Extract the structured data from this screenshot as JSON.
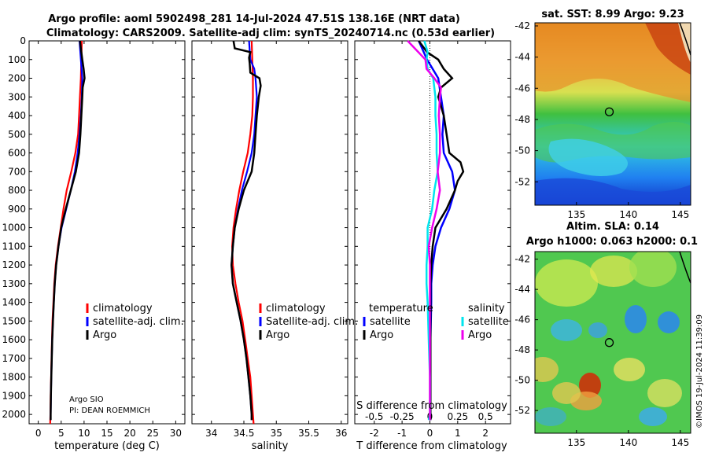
{
  "header": {
    "line1": "Argo profile: aoml 5902498_281 14-Jul-2024 47.51S 138.16E (NRT data)",
    "line2": "Climatology: CARS2009. Satellite-adj clim: synTS_20240714.nc (0.53d earlier)"
  },
  "colors": {
    "climatology": "#ff0000",
    "satellite": "#0000ff",
    "argo": "#000000",
    "sal_satellite": "#00e5ee",
    "sal_argo": "#ee00ee"
  },
  "depth_ticks": [
    0,
    100,
    200,
    300,
    400,
    500,
    600,
    700,
    800,
    900,
    1000,
    1100,
    1200,
    1300,
    1400,
    1500,
    1600,
    1700,
    1800,
    1900,
    2000
  ],
  "chart_data": [
    {
      "id": "temperature",
      "type": "line",
      "xlabel": "temperature (deg C)",
      "ylabel": "",
      "xlim": [
        -2,
        32
      ],
      "ylim": [
        2050,
        0
      ],
      "xticks": [
        0,
        5,
        10,
        15,
        20,
        25,
        30
      ],
      "xticklabels": [
        "0",
        "5",
        "10",
        "15",
        "20",
        "25",
        "30"
      ],
      "legend": {
        "position": "lower-right",
        "entries": [
          "climatology",
          "satellite-adj. clim.",
          "Argo"
        ]
      },
      "annotations": [
        "Argo SIO",
        "PI: DEAN ROEMMICH"
      ],
      "series": [
        {
          "name": "climatology",
          "color": "#ff0000",
          "depth": [
            0,
            100,
            200,
            300,
            400,
            500,
            600,
            700,
            800,
            900,
            1000,
            1100,
            1200,
            1300,
            1400,
            1500,
            1600,
            1700,
            1800,
            1900,
            2000,
            2050
          ],
          "values": [
            9.5,
            9.4,
            9.3,
            9.1,
            8.9,
            8.7,
            8.1,
            7.2,
            6.2,
            5.5,
            4.9,
            4.3,
            3.8,
            3.5,
            3.3,
            3.1,
            3.0,
            2.9,
            2.8,
            2.7,
            2.65,
            2.6
          ]
        },
        {
          "name": "satellite-adj. clim.",
          "color": "#0000ff",
          "depth": [
            0,
            100,
            200,
            300,
            400,
            500,
            600,
            700,
            800,
            900,
            1000,
            1100,
            1200,
            1300,
            1400,
            1500,
            1600,
            1700,
            1800,
            1900,
            2000,
            2030
          ],
          "values": [
            9.0,
            9.3,
            9.6,
            9.5,
            9.3,
            9.0,
            8.6,
            8.0,
            7.1,
            6.1,
            5.1,
            4.4,
            3.9,
            3.6,
            3.4,
            3.2,
            3.05,
            2.95,
            2.85,
            2.75,
            2.7,
            2.7
          ]
        },
        {
          "name": "Argo",
          "color": "#000000",
          "depth": [
            0,
            100,
            150,
            200,
            250,
            300,
            400,
            500,
            600,
            700,
            800,
            900,
            1000,
            1100,
            1200,
            1300,
            1400,
            1500,
            1600,
            1700,
            1800,
            1900,
            2000,
            2030
          ],
          "values": [
            9.1,
            9.6,
            9.9,
            10.1,
            9.7,
            9.6,
            9.4,
            9.2,
            8.9,
            8.2,
            7.1,
            6.0,
            5.0,
            4.4,
            3.9,
            3.6,
            3.4,
            3.2,
            3.05,
            2.95,
            2.85,
            2.75,
            2.7,
            2.7
          ]
        }
      ]
    },
    {
      "id": "salinity",
      "type": "line",
      "xlabel": "salinity",
      "ylabel": "",
      "xlim": [
        33.7,
        36.1
      ],
      "ylim": [
        2050,
        0
      ],
      "xticks": [
        34,
        34.5,
        35,
        35.5,
        36
      ],
      "xticklabels": [
        "34",
        "34.5",
        "35",
        "35.5",
        "36"
      ],
      "legend": {
        "position": "lower-right",
        "entries": [
          "climatology",
          "Satellite-adj. clim.",
          "Argo"
        ]
      },
      "series": [
        {
          "name": "climatology",
          "color": "#ff0000",
          "depth": [
            0,
            100,
            200,
            300,
            400,
            500,
            600,
            700,
            800,
            900,
            1000,
            1100,
            1200,
            1300,
            1400,
            1500,
            1600,
            1700,
            1800,
            1900,
            2000,
            2050
          ],
          "values": [
            34.62,
            34.63,
            34.64,
            34.64,
            34.63,
            34.6,
            34.56,
            34.49,
            34.43,
            34.38,
            34.34,
            34.32,
            34.33,
            34.37,
            34.42,
            34.48,
            34.52,
            34.56,
            34.6,
            34.62,
            34.64,
            34.65
          ]
        },
        {
          "name": "Satellite-adj. clim.",
          "color": "#0000ff",
          "depth": [
            0,
            100,
            150,
            200,
            300,
            400,
            500,
            600,
            700,
            800,
            900,
            1000,
            1100,
            1200,
            1300,
            1400,
            1500,
            1600,
            1700,
            1800,
            1900,
            2000,
            2030
          ],
          "values": [
            34.58,
            34.6,
            34.66,
            34.68,
            34.7,
            34.68,
            34.66,
            34.62,
            34.55,
            34.47,
            34.41,
            34.36,
            34.33,
            34.31,
            34.33,
            34.39,
            34.45,
            34.5,
            34.54,
            34.57,
            34.6,
            34.62,
            34.62
          ]
        },
        {
          "name": "Argo",
          "color": "#000000",
          "depth": [
            0,
            40,
            60,
            90,
            120,
            170,
            200,
            240,
            300,
            400,
            500,
            600,
            700,
            800,
            900,
            1000,
            1100,
            1200,
            1300,
            1400,
            1500,
            1600,
            1700,
            1800,
            1900,
            2000,
            2030
          ],
          "values": [
            34.34,
            34.36,
            34.6,
            34.58,
            34.59,
            34.6,
            34.74,
            34.76,
            34.73,
            34.7,
            34.68,
            34.66,
            34.62,
            34.5,
            34.42,
            34.36,
            34.33,
            34.31,
            34.33,
            34.39,
            34.45,
            34.5,
            34.54,
            34.57,
            34.6,
            34.62,
            34.62
          ]
        }
      ]
    },
    {
      "id": "difference",
      "type": "line",
      "xlabel": "T difference from climatology",
      "xlabel2": "S difference from climatology",
      "xlim": [
        -2.7,
        2.9
      ],
      "ylim": [
        2050,
        0
      ],
      "xticks": [
        -2,
        -1,
        0,
        1,
        2
      ],
      "xticklabels": [
        "-2",
        "-1",
        "0",
        "1",
        "2"
      ],
      "sticks": [
        -0.5,
        -0.25,
        0,
        0.25,
        0.5
      ],
      "sticklabels": [
        "-0.5",
        "-0.25",
        "0",
        "0.25",
        "0.5"
      ],
      "slim": [
        -0.675,
        0.725
      ],
      "legend": {
        "position": "lower",
        "temperature_title": "temperature",
        "salinity_title": "salinity",
        "entries": [
          "satellite",
          "Argo",
          "satellite",
          "Argo"
        ]
      },
      "series": [
        {
          "name": "temperature satellite",
          "color": "#0000ff",
          "depth": [
            0,
            100,
            200,
            300,
            400,
            500,
            600,
            700,
            800,
            900,
            1000,
            1100,
            1200,
            1300,
            1400,
            1600,
            1800,
            2000,
            2030
          ],
          "values": [
            -0.4,
            -0.1,
            0.3,
            0.4,
            0.5,
            0.45,
            0.5,
            0.8,
            0.9,
            0.7,
            0.4,
            0.2,
            0.1,
            0.05,
            0.05,
            0.02,
            0.02,
            0.02,
            0.02
          ]
        },
        {
          "name": "temperature Argo",
          "color": "#000000",
          "depth": [
            0,
            60,
            100,
            150,
            200,
            250,
            300,
            400,
            500,
            600,
            650,
            700,
            750,
            800,
            900,
            1000,
            1100,
            1200,
            1300,
            1400,
            1600,
            1800,
            2000,
            2030
          ],
          "values": [
            -0.4,
            -0.1,
            0.3,
            0.5,
            0.8,
            0.4,
            0.3,
            0.5,
            0.6,
            0.7,
            1.1,
            1.2,
            1.0,
            0.9,
            0.6,
            0.2,
            0.1,
            0.05,
            0.02,
            0.02,
            0.02,
            0.02,
            0.02,
            0.02
          ]
        },
        {
          "name": "salinity satellite",
          "color": "#00e5ee",
          "depth": [
            0,
            60,
            100,
            150,
            200,
            300,
            400,
            500,
            600,
            700,
            800,
            900,
            1000,
            1100,
            1200,
            1300,
            1400,
            1600,
            1800,
            2000,
            2030
          ],
          "values": [
            -0.05,
            -0.02,
            -0.03,
            -0.02,
            0.03,
            0.05,
            0.05,
            0.06,
            0.06,
            0.07,
            0.04,
            0.02,
            -0.02,
            -0.02,
            -0.03,
            -0.03,
            -0.02,
            -0.01,
            0.0,
            0.0,
            -0.01
          ]
        },
        {
          "name": "salinity Argo",
          "color": "#ee00ee",
          "depth": [
            0,
            50,
            100,
            150,
            200,
            250,
            300,
            400,
            500,
            600,
            700,
            800,
            900,
            1000,
            1100,
            1200,
            1300,
            1400,
            1600,
            1800,
            2000,
            2030
          ],
          "values": [
            -0.2,
            -0.12,
            -0.04,
            -0.03,
            0.04,
            0.1,
            0.09,
            0.08,
            0.09,
            0.09,
            0.07,
            0.09,
            0.06,
            0.02,
            -0.01,
            -0.0,
            0.0,
            0.0,
            0.0,
            0.0,
            0.0,
            0.0
          ]
        }
      ]
    },
    {
      "id": "sst_map",
      "type": "heatmap",
      "title": "sat. SST: 8.99 Argo: 9.23",
      "xticks": [
        135,
        140,
        145
      ],
      "xticklabels": [
        "135",
        "140",
        "145"
      ],
      "yticks": [
        -42,
        -44,
        -46,
        -48,
        -50,
        -52
      ],
      "yticklabels": [
        "-42",
        "-44",
        "-46",
        "-48",
        "-50",
        "-52"
      ],
      "xlim": [
        131,
        146
      ],
      "ylim": [
        -53.5,
        -41.8
      ],
      "profile_location": [
        138.16,
        -47.51
      ]
    },
    {
      "id": "sla_map",
      "type": "heatmap",
      "title": "Altim. SLA: 0.14",
      "title2": "Argo h1000: 0.063 h2000: 0.1",
      "xticks": [
        135,
        140,
        145
      ],
      "xticklabels": [
        "135",
        "140",
        "145"
      ],
      "yticks": [
        -42,
        -44,
        -46,
        -48,
        -50,
        -52
      ],
      "yticklabels": [
        "-42",
        "-44",
        "-46",
        "-48",
        "-50",
        "-52"
      ],
      "xlim": [
        131,
        146
      ],
      "ylim": [
        -53.5,
        -41.5
      ],
      "profile_location": [
        138.16,
        -47.51
      ]
    }
  ],
  "copyright": "©IMOS 19-Jul-2024 11:39:09"
}
